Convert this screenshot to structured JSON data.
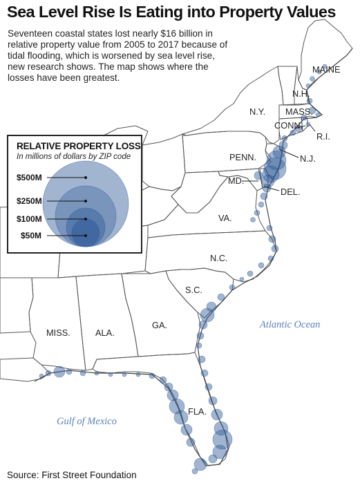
{
  "title": "Sea Level Rise Is Eating into Property Values",
  "subtitle": "Seventeen coastal states lost nearly $16 billion in relative property value from 2005 to 2017 because of tidal flooding, which is worsened by sea level rise, new research shows. The map shows where the losses have been greatest.",
  "legend": {
    "title": "RELATIVE PROPERTY LOSS",
    "subtitle": "In millions of dollars by ZIP code",
    "entries": [
      {
        "label": "$500M",
        "value_millions": 500
      },
      {
        "label": "$250M",
        "value_millions": 250
      },
      {
        "label": "$100M",
        "value_millions": 100
      },
      {
        "label": "$50M",
        "value_millions": 50
      }
    ]
  },
  "states": {
    "maine": "MAINE",
    "nh": "N.H.",
    "mass": "MASS.",
    "ny": "N.Y.",
    "conn": "CONN.",
    "ri": "R.I.",
    "nj": "N.J.",
    "penn": "PENN.",
    "md": "MD.",
    "del": "DEL.",
    "va": "VA.",
    "nc": "N.C.",
    "sc": "S.C.",
    "ga": "GA.",
    "ala": "ALA.",
    "miss": "MISS.",
    "fla": "FLA."
  },
  "water": {
    "atlantic": "Atlantic Ocean",
    "gulf": "Gulf of Mexico"
  },
  "source": "Source: First Street Foundation",
  "colors": {
    "bubble": "#2f5a97",
    "state_border": "#555555",
    "ocean_label": "#5b82b8",
    "text": "#222222"
  }
}
